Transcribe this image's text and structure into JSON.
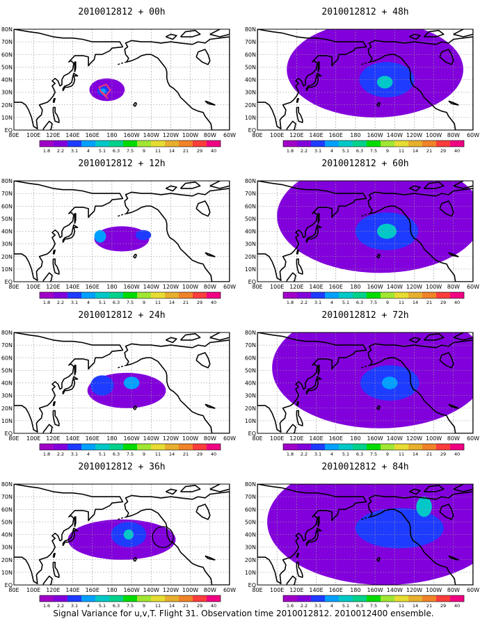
{
  "panels": [
    {
      "title": "2010012812 + 00h",
      "blobs": [
        [
          175,
          32,
          18,
          9,
          1
        ],
        [
          171,
          31,
          6,
          4,
          2
        ],
        [
          171,
          31,
          3,
          2,
          3
        ]
      ],
      "marker": "storm"
    },
    {
      "title": "2010012812 + 12h",
      "blobs": [
        [
          190,
          34,
          28,
          10,
          1
        ],
        [
          168,
          36,
          6,
          5,
          3
        ],
        [
          212,
          37,
          8,
          4,
          2
        ]
      ]
    },
    {
      "title": "2010012812 + 24h",
      "blobs": [
        [
          195,
          34,
          40,
          14,
          1
        ],
        [
          170,
          38,
          12,
          8,
          2
        ],
        [
          200,
          40,
          8,
          5,
          3
        ]
      ]
    },
    {
      "title": "2010012812 + 36h",
      "blobs": [
        [
          190,
          36,
          55,
          16,
          1
        ],
        [
          197,
          40,
          18,
          10,
          2
        ],
        [
          197,
          40,
          5,
          4,
          4
        ]
      ],
      "marker": "circle"
    },
    {
      "title": "2010012812 + 48h",
      "blobs": [
        [
          200,
          48,
          90,
          38,
          1
        ],
        [
          212,
          40,
          28,
          14,
          2
        ],
        [
          210,
          38,
          8,
          5,
          4
        ]
      ]
    },
    {
      "title": "2010012812 + 60h",
      "blobs": [
        [
          205,
          52,
          105,
          45,
          1
        ],
        [
          212,
          40,
          32,
          15,
          2
        ],
        [
          212,
          40,
          10,
          6,
          4
        ]
      ]
    },
    {
      "title": "2010012812 + 72h",
      "blobs": [
        [
          205,
          52,
          110,
          48,
          1
        ],
        [
          215,
          40,
          30,
          14,
          2
        ],
        [
          215,
          40,
          8,
          5,
          3
        ]
      ]
    },
    {
      "title": "2010012812 + 84h",
      "blobs": [
        [
          210,
          50,
          120,
          50,
          1
        ],
        [
          225,
          45,
          45,
          16,
          2
        ],
        [
          250,
          62,
          8,
          8,
          4
        ]
      ]
    }
  ],
  "lat_labels": [
    "EQ",
    "10N",
    "20N",
    "30N",
    "40N",
    "50N",
    "60N",
    "70N",
    "80N"
  ],
  "lon_labels": [
    "80E",
    "100E",
    "120E",
    "140E",
    "160E",
    "180",
    "160W",
    "140W",
    "120W",
    "100W",
    "80W",
    "60W"
  ],
  "colorbar": {
    "labels": [
      "1.8",
      "2.2",
      "3.1",
      "4",
      "5.1",
      "6.3",
      "7.5",
      "9",
      "11",
      "14",
      "21",
      "29",
      "40"
    ],
    "labels_last": [
      "1.6",
      "2.2",
      "3.1",
      "4",
      "5.1",
      "6.3",
      "7.5",
      "9",
      "11",
      "14",
      "21",
      "29",
      "40"
    ],
    "colors": [
      "#a000c8",
      "#8200dc",
      "#1e3cff",
      "#00a0ff",
      "#00c8c8",
      "#00d28c",
      "#00dc00",
      "#a0e632",
      "#e6dc32",
      "#e6af2d",
      "#f08228",
      "#fa3c3c",
      "#f00082"
    ]
  },
  "caption": "Signal Variance for u,v,T. Flight 31. Observation time 2010012812. 2010012400 ensemble."
}
